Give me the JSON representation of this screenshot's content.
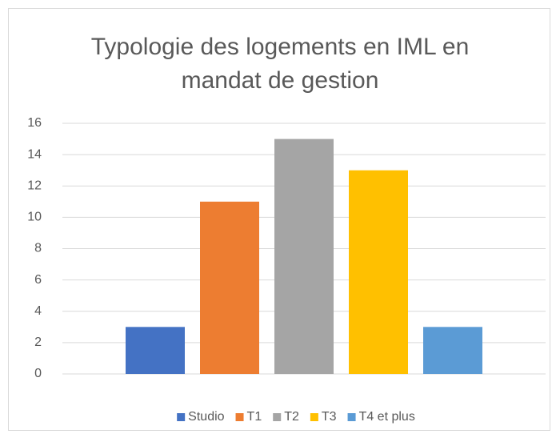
{
  "chart_data": {
    "type": "bar",
    "title": "Typologie des logements en IML en mandat de gestion",
    "categories": [
      null
    ],
    "series": [
      {
        "name": "Studio",
        "color": "#4472c4",
        "values": [
          3
        ]
      },
      {
        "name": "T1",
        "color": "#ed7d31",
        "values": [
          11
        ]
      },
      {
        "name": "T2",
        "color": "#a5a5a5",
        "values": [
          15
        ]
      },
      {
        "name": "T3",
        "color": "#ffc000",
        "values": [
          13
        ]
      },
      {
        "name": "T4 et plus",
        "color": "#5b9bd5",
        "values": [
          3
        ]
      }
    ],
    "ylim": [
      0,
      16
    ],
    "yticks": [
      0,
      2,
      4,
      6,
      8,
      10,
      12,
      14,
      16
    ],
    "grid": true,
    "legend": "bottom"
  }
}
